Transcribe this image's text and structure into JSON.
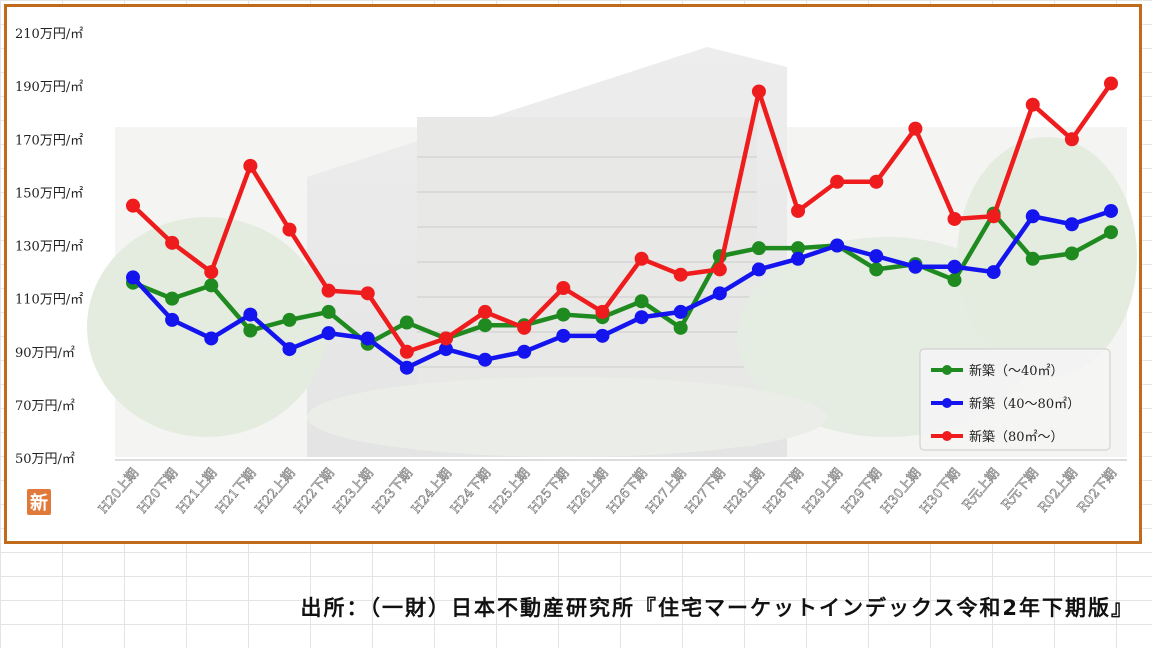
{
  "source": "出所：（一財）日本不動産研究所『住宅マーケットインデックス令和2年下期版』",
  "badge": "新",
  "colors": {
    "frame": "#c06a1c",
    "green": "#1f8a1f",
    "blue": "#1414ee",
    "red": "#ee1c1c"
  },
  "chart_data": {
    "type": "line",
    "title": "",
    "xlabel": "",
    "ylabel": "",
    "ylim": [
      50,
      210
    ],
    "yticks": [
      "210万円/㎡",
      "190万円/㎡",
      "170万円/㎡",
      "150万円/㎡",
      "130万円/㎡",
      "110万円/㎡",
      "90万円/㎡",
      "70万円/㎡",
      "50万円/㎡"
    ],
    "ytick_values": [
      210,
      190,
      170,
      150,
      130,
      110,
      90,
      70,
      50
    ],
    "categories": [
      "H20上期",
      "H20下期",
      "H21上期",
      "H21下期",
      "H22上期",
      "H22下期",
      "H23上期",
      "H23下期",
      "H24上期",
      "H24下期",
      "H25上期",
      "H25下期",
      "H26上期",
      "H26下期",
      "H27上期",
      "H27下期",
      "H28上期",
      "H28下期",
      "H29上期",
      "H29下期",
      "H30上期",
      "H30下期",
      "R元上期",
      "R元下期",
      "R02上期",
      "R02下期"
    ],
    "legend_position": "bottom-right",
    "series": [
      {
        "name": "新築（～40㎡）",
        "color": "#1f8a1f",
        "values": [
          116,
          110,
          115,
          98,
          102,
          105,
          93,
          101,
          95,
          100,
          100,
          104,
          103,
          109,
          99,
          126,
          129,
          129,
          130,
          121,
          123,
          117,
          142,
          125,
          127,
          135
        ]
      },
      {
        "name": "新築（40～80㎡）",
        "color": "#1414ee",
        "values": [
          118,
          102,
          95,
          104,
          91,
          97,
          95,
          84,
          91,
          87,
          90,
          96,
          96,
          103,
          105,
          112,
          121,
          125,
          130,
          126,
          122,
          122,
          120,
          141,
          138,
          143
        ]
      },
      {
        "name": "新築（80㎡～）",
        "color": "#ee1c1c",
        "values": [
          145,
          131,
          120,
          160,
          136,
          113,
          112,
          90,
          95,
          105,
          99,
          114,
          105,
          125,
          119,
          121,
          188,
          143,
          154,
          154,
          174,
          140,
          141,
          183,
          170,
          191
        ]
      }
    ]
  }
}
